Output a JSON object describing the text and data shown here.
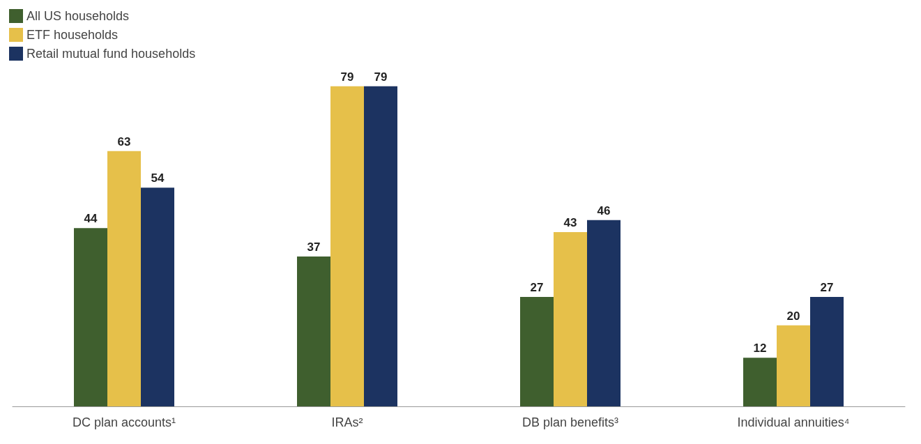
{
  "chart_data": {
    "type": "bar",
    "categories": [
      "DC plan accounts¹",
      "IRAs²",
      "DB plan benefits³",
      "Individual annuities⁴"
    ],
    "series": [
      {
        "name": "All US households",
        "color": "#3f5f2e",
        "values": [
          44,
          37,
          27,
          12
        ]
      },
      {
        "name": "ETF households",
        "color": "#e6c04a",
        "values": [
          63,
          79,
          43,
          20
        ]
      },
      {
        "name": "Retail mutual fund households",
        "color": "#1c3361",
        "values": [
          54,
          79,
          46,
          27
        ]
      }
    ],
    "data_labels": true,
    "legend": "top left",
    "grid": false
  }
}
